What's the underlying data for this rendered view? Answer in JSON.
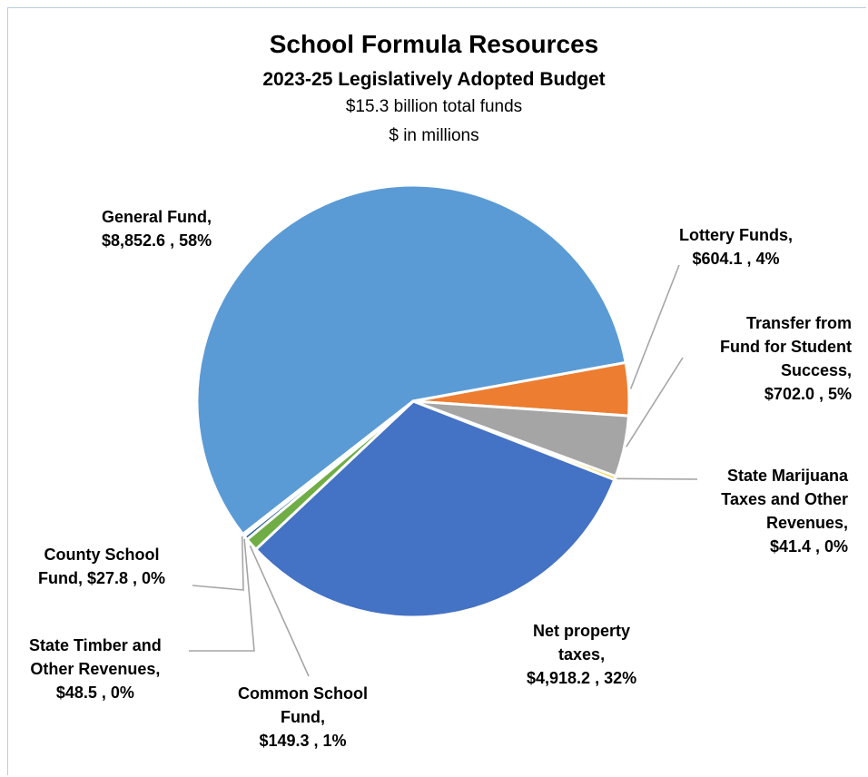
{
  "chart_data": {
    "type": "pie",
    "title": "School Formula Resources",
    "subtitle": "2023-25 Legislatively Adopted Budget",
    "notes": [
      "$15.3 billion total funds",
      "$ in millions"
    ],
    "slices": [
      {
        "name": "General Fund",
        "value": 8852.6,
        "percent": "58%",
        "label_lines": [
          "General Fund,",
          "$8,852.6 , 58%"
        ],
        "color": "#5B9BD5"
      },
      {
        "name": "Lottery Funds",
        "value": 604.1,
        "percent": "4%",
        "label_lines": [
          "Lottery Funds,",
          "$604.1 , 4%"
        ],
        "color": "#ED7D31"
      },
      {
        "name": "Transfer from Fund for Student Success",
        "value": 702.0,
        "percent": "5%",
        "label_lines": [
          "Transfer from",
          "Fund for Student",
          "Success,",
          "$702.0 , 5%"
        ],
        "color": "#A5A5A5"
      },
      {
        "name": "State Marijuana Taxes and Other Revenues",
        "value": 41.4,
        "percent": "0%",
        "label_lines": [
          "State Marijuana",
          "Taxes and Other",
          "Revenues,",
          "$41.4 , 0%"
        ],
        "color": "#FFC000"
      },
      {
        "name": "Net property taxes",
        "value": 4918.2,
        "percent": "32%",
        "label_lines": [
          "Net property",
          "taxes,",
          "$4,918.2 , 32%"
        ],
        "color": "#4472C4"
      },
      {
        "name": "Common School Fund",
        "value": 149.3,
        "percent": "1%",
        "label_lines": [
          "Common School",
          "Fund,",
          "$149.3 , 1%"
        ],
        "color": "#70AD47"
      },
      {
        "name": "State Timber and Other Revenues",
        "value": 48.5,
        "percent": "0%",
        "label_lines": [
          "State Timber and",
          "Other Revenues,",
          "$48.5 , 0%"
        ],
        "color": "#255E91"
      },
      {
        "name": "County School Fund",
        "value": 27.8,
        "percent": "0%",
        "label_lines": [
          "County School",
          "Fund,  $27.8 , 0%"
        ],
        "color": "#9E480E"
      }
    ]
  }
}
